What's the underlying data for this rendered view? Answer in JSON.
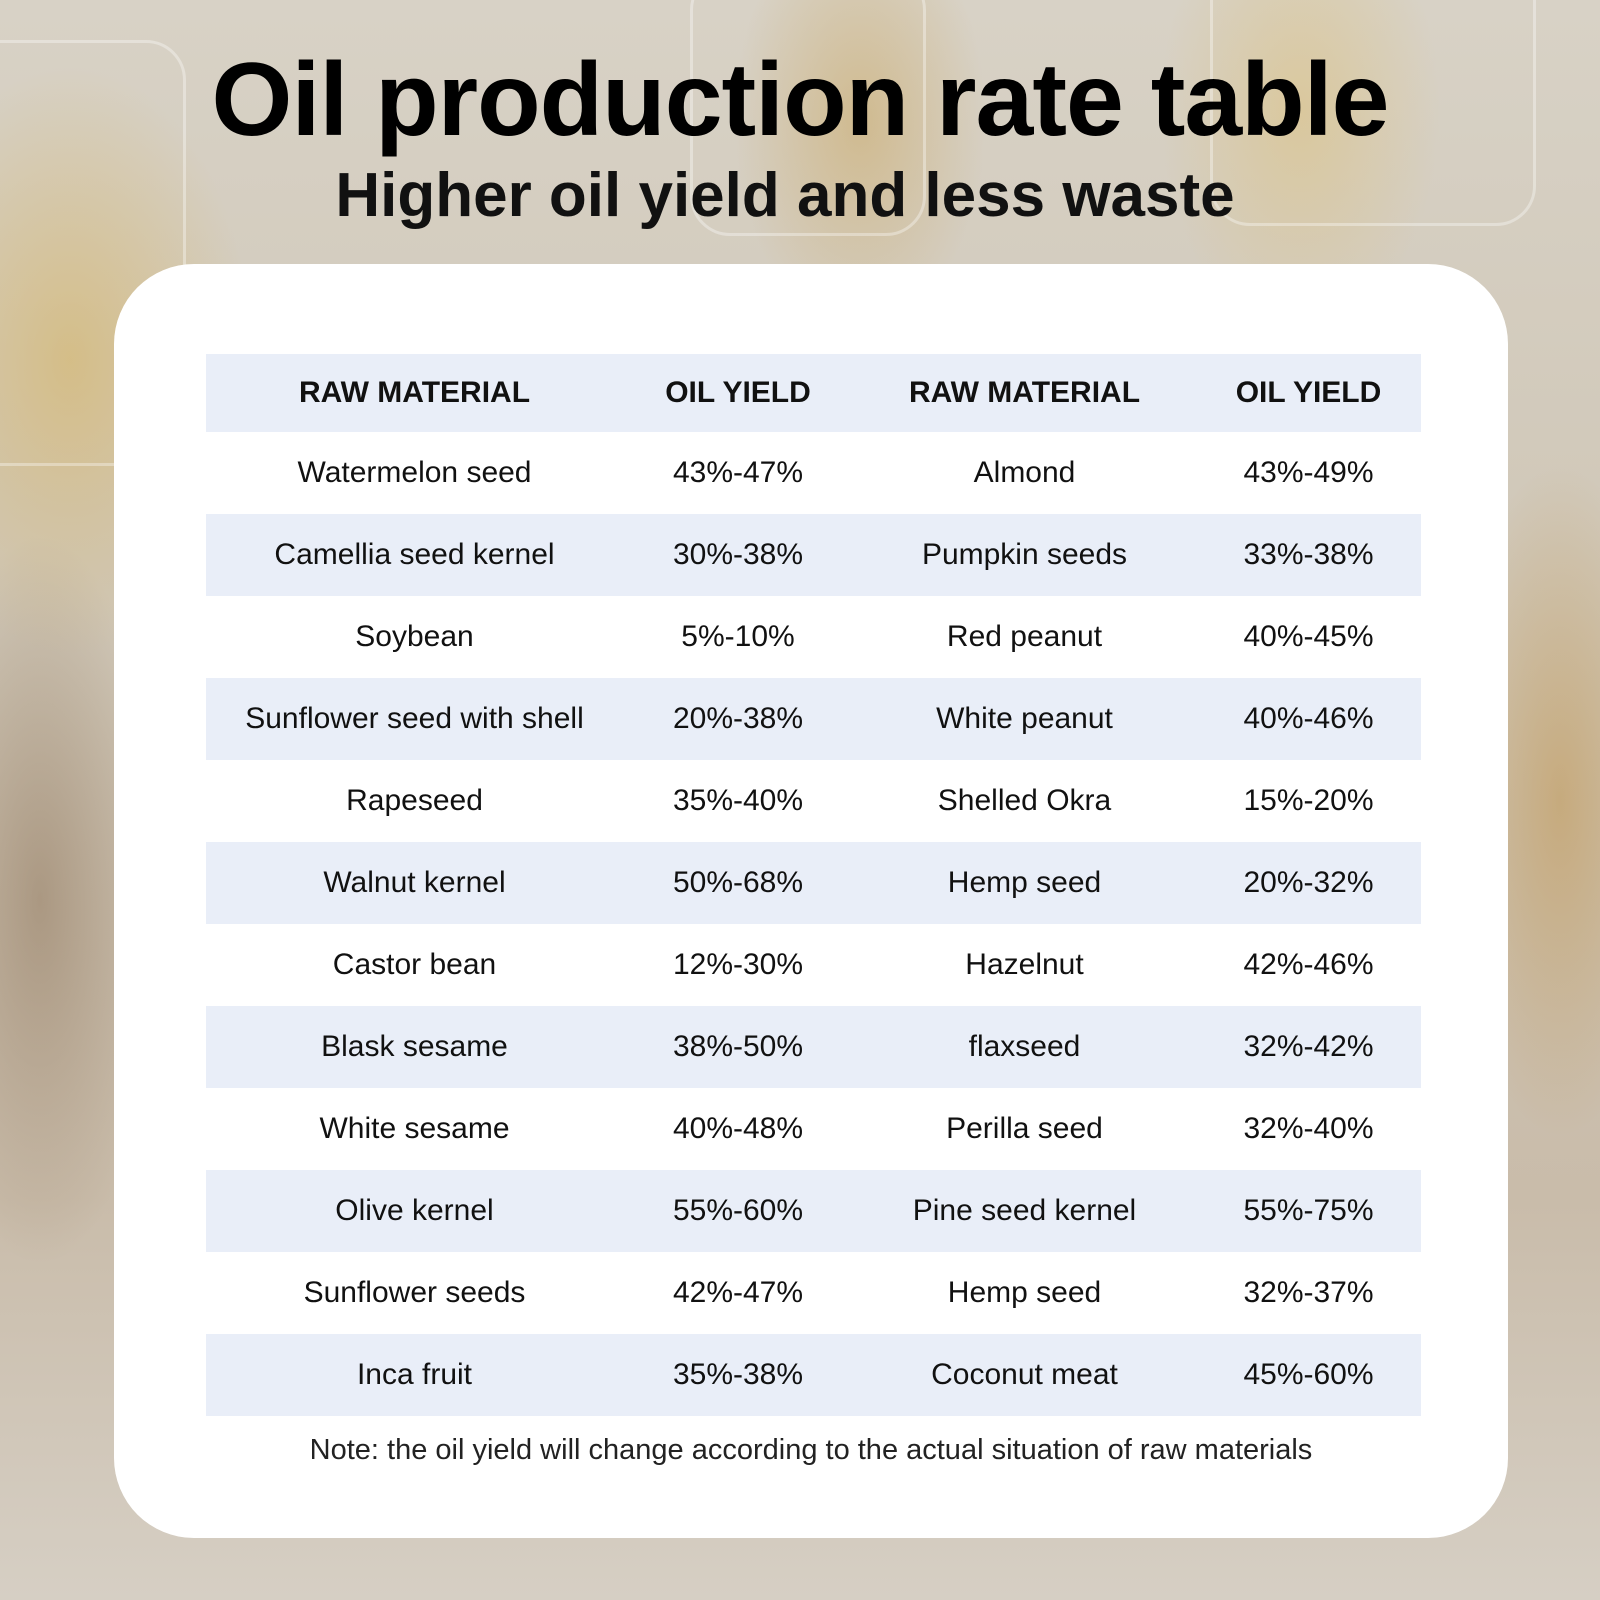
{
  "title": "Oil production rate table",
  "subtitle": "Higher oil yield and less waste",
  "table": {
    "headers": [
      "RAW MATERIAL",
      "OIL YIELD",
      "RAW MATERIAL",
      "OIL YIELD"
    ],
    "rows": [
      [
        "Watermelon seed",
        "43%-47%",
        "Almond",
        "43%-49%"
      ],
      [
        "Camellia seed kernel",
        "30%-38%",
        "Pumpkin seeds",
        "33%-38%"
      ],
      [
        "Soybean",
        "5%-10%",
        "Red peanut",
        "40%-45%"
      ],
      [
        "Sunflower seed with shell",
        "20%-38%",
        "White peanut",
        "40%-46%"
      ],
      [
        "Rapeseed",
        "35%-40%",
        "Shelled Okra",
        "15%-20%"
      ],
      [
        "Walnut kernel",
        "50%-68%",
        "Hemp seed",
        "20%-32%"
      ],
      [
        "Castor bean",
        "12%-30%",
        "Hazelnut",
        "42%-46%"
      ],
      [
        "Blask sesame",
        "38%-50%",
        "flaxseed",
        "32%-42%"
      ],
      [
        "White sesame",
        "40%-48%",
        "Perilla seed",
        "32%-40%"
      ],
      [
        "Olive kernel",
        "55%-60%",
        "Pine seed kernel",
        "55%-75%"
      ],
      [
        "Sunflower seeds",
        "42%-47%",
        "Hemp seed",
        "32%-37%"
      ],
      [
        "Inca fruit",
        "35%-38%",
        "Coconut meat",
        "45%-60%"
      ]
    ]
  },
  "note": "Note: the oil yield will change according to the actual situation of raw materials",
  "colors": {
    "header_row_bg": "#e9eef8",
    "shaded_row_bg": "#e9eef8",
    "card_bg": "#ffffff",
    "text": "#111111"
  }
}
